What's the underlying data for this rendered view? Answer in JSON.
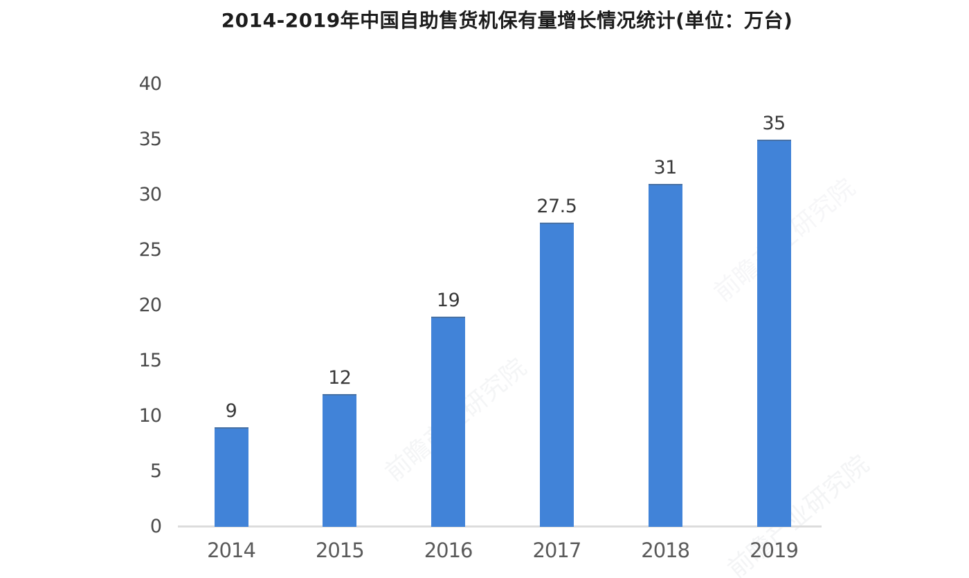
{
  "title": "2014-2019年中国自助售货机保有量增长情况统计(单位：万台)",
  "watermark": "前瞻产业研究院",
  "colors": {
    "bar": "#4183d8",
    "axis_line": "#dcdcdc",
    "y_tick_label": "#4a4a4a",
    "x_tick_label": "#5a5a5a",
    "value_label": "#383838",
    "title": "#1c1c1c",
    "background": "#ffffff"
  },
  "chart_data": {
    "type": "bar",
    "title": "2014-2019年中国自助售货机保有量增长情况统计(单位：万台)",
    "unit": "万台",
    "categories": [
      "2014",
      "2015",
      "2016",
      "2017",
      "2018",
      "2019"
    ],
    "values": [
      9,
      12,
      19,
      27.5,
      31,
      35
    ],
    "value_labels": [
      "9",
      "12",
      "19",
      "27.5",
      "31",
      "35"
    ],
    "xlabel": "",
    "ylabel": "",
    "ylim": [
      0,
      40
    ],
    "yticks": [
      0,
      5,
      10,
      15,
      20,
      25,
      30,
      35,
      40
    ],
    "grid": false,
    "legend": false,
    "bar_color": "#4183d8"
  }
}
